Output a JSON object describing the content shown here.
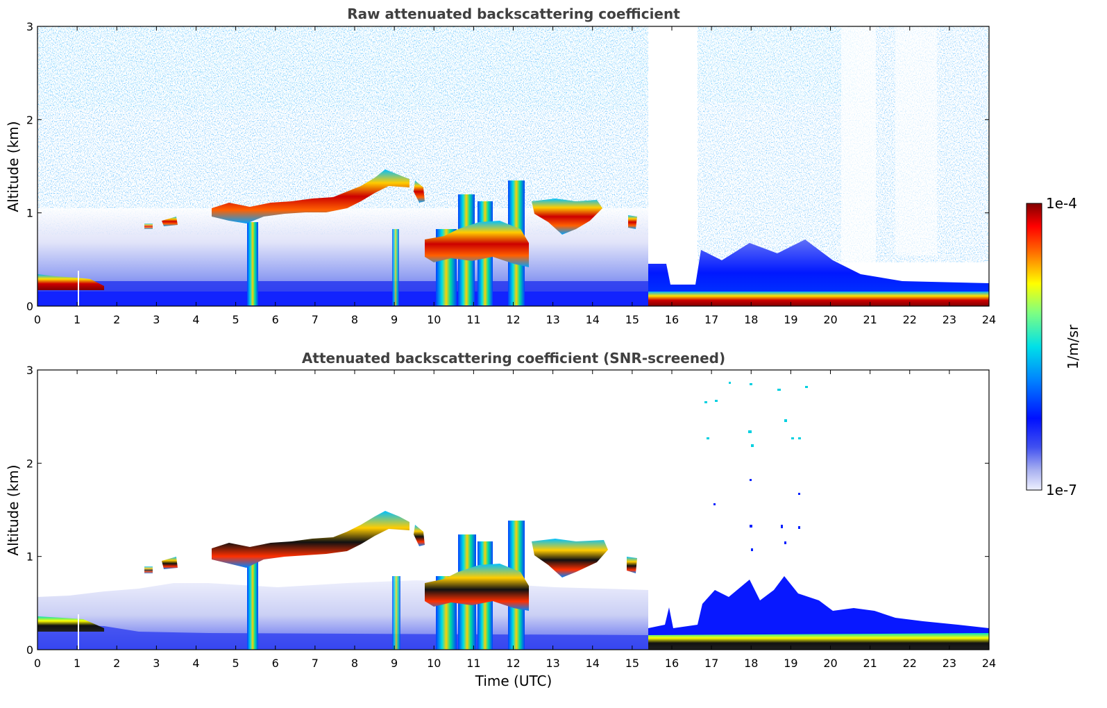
{
  "chart_data": [
    {
      "type": "heatmap",
      "title": "Raw attenuated backscattering coefficient",
      "xlabel": "",
      "ylabel": "Altitude (km)",
      "xlim": [
        0,
        24
      ],
      "ylim": [
        0,
        3
      ],
      "xticks": [
        "0",
        "1",
        "2",
        "3",
        "4",
        "5",
        "6",
        "7",
        "8",
        "9",
        "10",
        "11",
        "12",
        "13",
        "14",
        "15",
        "16",
        "17",
        "18",
        "19",
        "20",
        "21",
        "22",
        "23",
        "24"
      ],
      "yticks": [
        "0",
        "1",
        "2",
        "3"
      ],
      "features": [
        {
          "label": "surface layer",
          "x": [
            0,
            2
          ],
          "y": [
            0.0,
            0.35
          ],
          "level": "high"
        },
        {
          "label": "cloud layer",
          "x": [
            4.4,
            9.8
          ],
          "y": [
            0.9,
            1.5
          ],
          "level": "high"
        },
        {
          "label": "cloud layer",
          "x": [
            9.8,
            12.4
          ],
          "y": [
            0.4,
            1.3
          ],
          "level": "high"
        },
        {
          "label": "cloud layer",
          "x": [
            12.5,
            15.2
          ],
          "y": [
            0.7,
            1.15
          ],
          "level": "high"
        },
        {
          "label": "surface layer",
          "x": [
            15.4,
            24
          ],
          "y": [
            0.0,
            0.12
          ],
          "level": "high"
        }
      ]
    },
    {
      "type": "heatmap",
      "title": "Attenuated backscattering coefficient (SNR-screened)",
      "xlabel": "Time (UTC)",
      "ylabel": "Altitude (km)",
      "xlim": [
        0,
        24
      ],
      "ylim": [
        0,
        3
      ],
      "xticks": [
        "0",
        "1",
        "2",
        "3",
        "4",
        "5",
        "6",
        "7",
        "8",
        "9",
        "10",
        "11",
        "12",
        "13",
        "14",
        "15",
        "16",
        "17",
        "18",
        "19",
        "20",
        "21",
        "22",
        "23",
        "24"
      ],
      "yticks": [
        "0",
        "1",
        "2",
        "3"
      ]
    }
  ],
  "colorbar": {
    "label": "1/m/sr",
    "min_label": "1e-7",
    "max_label": "1e-4",
    "colormap": "jet"
  }
}
